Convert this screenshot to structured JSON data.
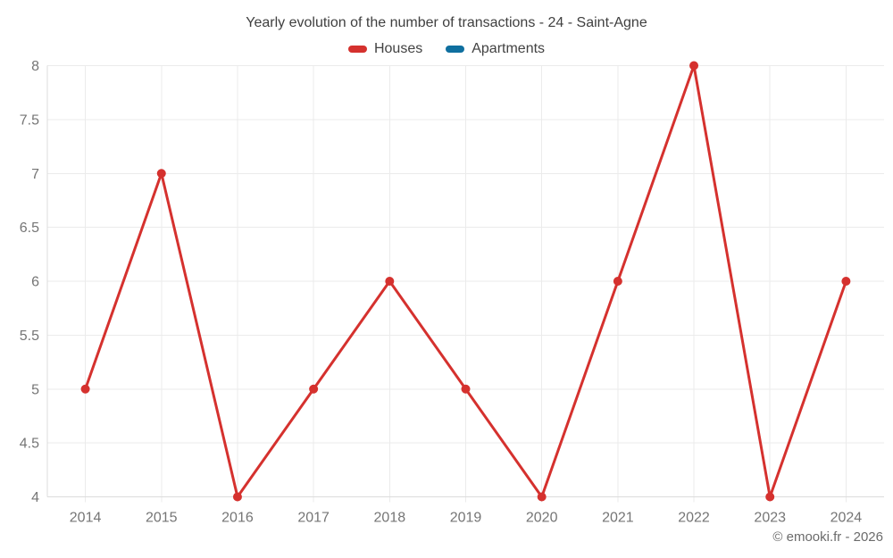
{
  "page": {
    "title": "Yearly evolution of the number of transactions - 24 - Saint-Agne",
    "footer": "© emooki.fr - 2026"
  },
  "legend": [
    {
      "label": "Houses",
      "color": "#d5312e"
    },
    {
      "label": "Apartments",
      "color": "#0f6f9f"
    }
  ],
  "chart_data": {
    "type": "line",
    "title": "Yearly evolution of the number of transactions - 24 - Saint-Agne",
    "categories": [
      "2014",
      "2015",
      "2016",
      "2017",
      "2018",
      "2019",
      "2020",
      "2021",
      "2022",
      "2023",
      "2024"
    ],
    "series": [
      {
        "name": "Houses",
        "color": "#d5312e",
        "values": [
          5,
          7,
          4,
          5,
          6,
          5,
          4,
          6,
          8,
          4,
          6
        ]
      },
      {
        "name": "Apartments",
        "color": "#0f6f9f",
        "values": []
      }
    ],
    "xlabel": "",
    "ylabel": "",
    "ylim": [
      4,
      8
    ],
    "yticks": [
      4,
      4.5,
      5,
      5.5,
      6,
      6.5,
      7,
      7.5,
      8
    ],
    "grid": true,
    "legend_position": "top",
    "marker": "circle"
  },
  "colors": {
    "grid": "#ebebeb",
    "axis": "#dcdcdc",
    "tick_label": "#757575",
    "title_text": "#3f3f3f",
    "footer_text": "#6b6b6b"
  }
}
